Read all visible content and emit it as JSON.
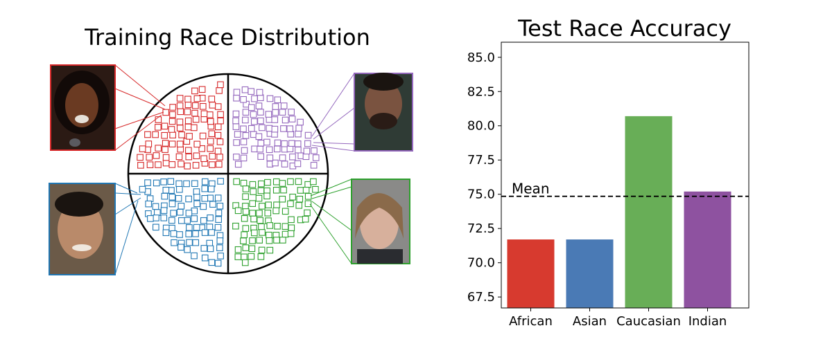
{
  "left_panel": {
    "title": "Training Race Distribution",
    "groups": [
      {
        "label": "African",
        "color": "#d62728",
        "quadrant": "top-left",
        "face": "African face photo"
      },
      {
        "label": "Indian",
        "color": "#9467bd",
        "quadrant": "top-right",
        "face": "Indian face photo"
      },
      {
        "label": "Asian",
        "color": "#1f77b4",
        "quadrant": "bottom-left",
        "face": "Asian face photo"
      },
      {
        "label": "Caucasian",
        "color": "#2ca02c",
        "quadrant": "bottom-right",
        "face": "Caucasian face photo"
      }
    ]
  },
  "chart_data": {
    "type": "bar",
    "title": "Test Race Accuracy",
    "categories": [
      "African",
      "Asian",
      "Caucasian",
      "Indian"
    ],
    "values": [
      71.7,
      71.7,
      80.7,
      75.2
    ],
    "colors": [
      "#d73a2f",
      "#4a7ab5",
      "#68ae57",
      "#8e52a0"
    ],
    "ylim": [
      66.7,
      86.1
    ],
    "yticks": [
      "67.5",
      "70.0",
      "72.5",
      "75.0",
      "77.5",
      "80.0",
      "82.5",
      "85.0"
    ],
    "mean_line": {
      "value": 74.85,
      "label": "Mean"
    },
    "xlabel": "",
    "ylabel": ""
  }
}
